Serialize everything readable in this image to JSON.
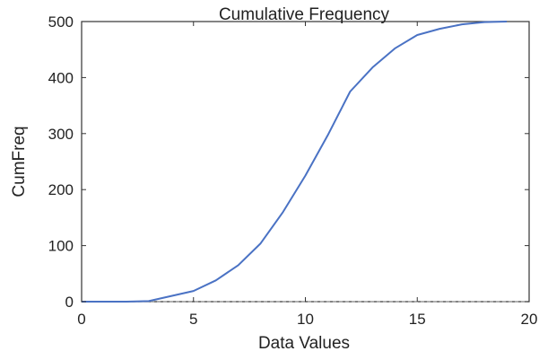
{
  "chart_data": {
    "type": "line",
    "title": "Cumulative Frequency",
    "xlabel": "Data Values",
    "ylabel": "CumFreq",
    "xlim": [
      0,
      20
    ],
    "ylim": [
      0,
      500
    ],
    "xticks": [
      "0",
      "5",
      "10",
      "15",
      "20"
    ],
    "yticks": [
      "0",
      "100",
      "200",
      "300",
      "400",
      "500"
    ],
    "grid": false,
    "legend": "none",
    "series": [
      {
        "color": "#4a72c4",
        "x": [
          0,
          1,
          2,
          3,
          4,
          5,
          6,
          7,
          8,
          9,
          10,
          11,
          12,
          13,
          14,
          15,
          16,
          17,
          18,
          19
        ],
        "y": [
          0,
          0,
          0,
          1,
          10,
          19,
          38,
          65,
          104,
          160,
          225,
          297,
          375,
          418,
          452,
          476,
          487,
          495,
          499,
          500
        ]
      }
    ],
    "reference_line": {
      "y": 0,
      "color": "#999999",
      "style": "dashed"
    }
  }
}
